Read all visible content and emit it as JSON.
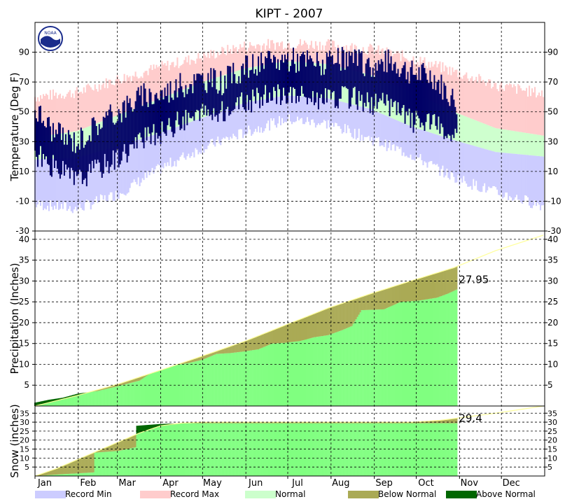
{
  "chart_data": {
    "title": "KIPT - 2007",
    "type": "area",
    "months": [
      "Jan",
      "Feb",
      "Mar",
      "Apr",
      "May",
      "Jun",
      "Jul",
      "Aug",
      "Sep",
      "Oct",
      "Nov",
      "Dec"
    ],
    "logo_text": "NOAA",
    "legend": [
      {
        "label": "Record Min",
        "color": "#ccccff"
      },
      {
        "label": "Record Max",
        "color": "#ffcccc"
      },
      {
        "label": "Normal",
        "color": "#ccffcc"
      },
      {
        "label": "Below Normal",
        "color": "#aaaa55"
      },
      {
        "label": "Above Normal",
        "color": "#006600"
      }
    ],
    "colors": {
      "observed_temp": "#000066",
      "observed_precip": "#80ff80",
      "normal_line": "#ffff99"
    },
    "panels": [
      {
        "id": "temperature",
        "ylabel": "Temperature (Deg F)",
        "ylim": [
          -30,
          110
        ],
        "ticks": [
          -30,
          -10,
          10,
          30,
          50,
          70,
          90
        ],
        "tick_labels": [
          "-30",
          "-10",
          "10",
          "30",
          "50",
          "70",
          "90"
        ],
        "record_max": [
          [
            0,
            60
          ],
          [
            30,
            63
          ],
          [
            60,
            72
          ],
          [
            90,
            80
          ],
          [
            120,
            87
          ],
          [
            150,
            94
          ],
          [
            180,
            96
          ],
          [
            210,
            95
          ],
          [
            240,
            92
          ],
          [
            270,
            86
          ],
          [
            300,
            77
          ],
          [
            330,
            68
          ],
          [
            364,
            62
          ]
        ],
        "normal_high": [
          [
            0,
            33
          ],
          [
            30,
            37
          ],
          [
            60,
            48
          ],
          [
            90,
            59
          ],
          [
            120,
            70
          ],
          [
            150,
            79
          ],
          [
            180,
            84
          ],
          [
            210,
            82
          ],
          [
            240,
            75
          ],
          [
            270,
            63
          ],
          [
            300,
            50
          ],
          [
            330,
            39
          ],
          [
            364,
            34
          ]
        ],
        "normal_low": [
          [
            0,
            18
          ],
          [
            30,
            19
          ],
          [
            60,
            27
          ],
          [
            90,
            36
          ],
          [
            120,
            46
          ],
          [
            150,
            56
          ],
          [
            180,
            61
          ],
          [
            210,
            59
          ],
          [
            240,
            52
          ],
          [
            270,
            40
          ],
          [
            300,
            31
          ],
          [
            330,
            23
          ],
          [
            364,
            20
          ]
        ],
        "record_min": [
          [
            0,
            -12
          ],
          [
            30,
            -15
          ],
          [
            60,
            -5
          ],
          [
            90,
            12
          ],
          [
            120,
            26
          ],
          [
            150,
            36
          ],
          [
            180,
            45
          ],
          [
            210,
            42
          ],
          [
            240,
            32
          ],
          [
            270,
            21
          ],
          [
            300,
            6
          ],
          [
            330,
            -4
          ],
          [
            364,
            -13
          ]
        ],
        "observed_high": [
          [
            0,
            52
          ],
          [
            15,
            35
          ],
          [
            30,
            30
          ],
          [
            45,
            42
          ],
          [
            60,
            50
          ],
          [
            75,
            60
          ],
          [
            90,
            62
          ],
          [
            105,
            68
          ],
          [
            120,
            72
          ],
          [
            135,
            70
          ],
          [
            150,
            80
          ],
          [
            165,
            82
          ],
          [
            180,
            86
          ],
          [
            195,
            84
          ],
          [
            210,
            82
          ],
          [
            225,
            86
          ],
          [
            240,
            80
          ],
          [
            255,
            84
          ],
          [
            270,
            76
          ],
          [
            285,
            74
          ],
          [
            302,
            56
          ]
        ],
        "observed_low": [
          [
            0,
            22
          ],
          [
            15,
            12
          ],
          [
            30,
            4
          ],
          [
            45,
            12
          ],
          [
            60,
            20
          ],
          [
            75,
            30
          ],
          [
            90,
            36
          ],
          [
            105,
            44
          ],
          [
            120,
            48
          ],
          [
            135,
            50
          ],
          [
            150,
            56
          ],
          [
            165,
            60
          ],
          [
            180,
            62
          ],
          [
            195,
            60
          ],
          [
            210,
            58
          ],
          [
            225,
            60
          ],
          [
            240,
            56
          ],
          [
            255,
            54
          ],
          [
            270,
            44
          ],
          [
            285,
            42
          ],
          [
            302,
            30
          ]
        ]
      },
      {
        "id": "precipitation",
        "ylabel": "Precipitation (Inches)",
        "ylim": [
          0,
          42
        ],
        "ticks": [
          5,
          10,
          15,
          20,
          25,
          30,
          35,
          40
        ],
        "tick_labels": [
          "5",
          "10",
          "15",
          "20",
          "25",
          "30",
          "35",
          "40"
        ],
        "final_value": "27.95",
        "normal": [
          [
            0,
            0
          ],
          [
            30,
            2.5
          ],
          [
            60,
            5.3
          ],
          [
            90,
            8.6
          ],
          [
            120,
            12.0
          ],
          [
            150,
            15.5
          ],
          [
            180,
            19.5
          ],
          [
            210,
            23.5
          ],
          [
            240,
            26.9
          ],
          [
            270,
            30.1
          ],
          [
            300,
            33.2
          ],
          [
            330,
            37.3
          ],
          [
            364,
            41.0
          ]
        ],
        "observed": [
          [
            0,
            0.8
          ],
          [
            10,
            1.5
          ],
          [
            20,
            2.0
          ],
          [
            31,
            3.0
          ],
          [
            45,
            3.6
          ],
          [
            60,
            4.8
          ],
          [
            75,
            6.1
          ],
          [
            82,
            7.7
          ],
          [
            90,
            8.5
          ],
          [
            100,
            9.8
          ],
          [
            110,
            10.3
          ],
          [
            120,
            11.1
          ],
          [
            130,
            12.5
          ],
          [
            140,
            12.7
          ],
          [
            150,
            13.1
          ],
          [
            160,
            13.6
          ],
          [
            170,
            15.0
          ],
          [
            180,
            15.2
          ],
          [
            190,
            15.6
          ],
          [
            200,
            16.5
          ],
          [
            210,
            17.0
          ],
          [
            220,
            18.2
          ],
          [
            227,
            19.2
          ],
          [
            234,
            23.0
          ],
          [
            250,
            23.2
          ],
          [
            262,
            25.0
          ],
          [
            275,
            25.3
          ],
          [
            288,
            26.0
          ],
          [
            296,
            27.0
          ],
          [
            302,
            27.95
          ]
        ]
      },
      {
        "id": "snow",
        "ylabel": "Snow (inches)",
        "ylim": [
          0,
          39
        ],
        "ticks": [
          5,
          10,
          15,
          20,
          25,
          30,
          35
        ],
        "tick_labels": [
          "5",
          "10",
          "15",
          "20",
          "25",
          "30",
          "35"
        ],
        "final_value": "29.4",
        "normal": [
          [
            0,
            0
          ],
          [
            15,
            4
          ],
          [
            30,
            9
          ],
          [
            45,
            14
          ],
          [
            60,
            19
          ],
          [
            75,
            24
          ],
          [
            90,
            28
          ],
          [
            105,
            29.5
          ],
          [
            120,
            30
          ],
          [
            270,
            30
          ],
          [
            290,
            31
          ],
          [
            310,
            33
          ],
          [
            330,
            35
          ],
          [
            364,
            39
          ]
        ],
        "observed": [
          [
            0,
            0
          ],
          [
            20,
            1
          ],
          [
            42,
            2
          ],
          [
            43,
            13
          ],
          [
            60,
            14
          ],
          [
            72,
            16
          ],
          [
            73,
            28
          ],
          [
            90,
            29
          ],
          [
            105,
            29.4
          ],
          [
            302,
            29.4
          ]
        ]
      }
    ]
  }
}
